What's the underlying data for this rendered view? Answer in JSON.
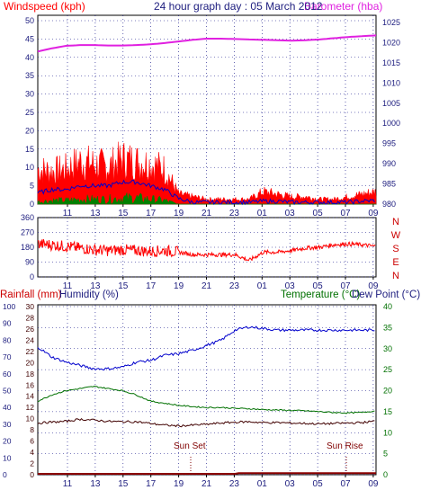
{
  "colors": {
    "red": "#ff0000",
    "blue": "#0000cc",
    "green": "#008000",
    "magenta": "#e020e0",
    "navy": "#202080",
    "darkgreen": "#007000",
    "maroon": "#400000",
    "grid": "#000080"
  },
  "chart_data": [
    {
      "type": "line",
      "title": "24 hour graph day : 05 March 2012",
      "ylabel_left": "Windspeed (kph)",
      "ylabel_right": "Barometer (hba)",
      "x_ticks": [
        "11",
        "13",
        "15",
        "17",
        "19",
        "21",
        "23",
        "01",
        "03",
        "05",
        "07",
        "09"
      ],
      "y_left_ticks": [
        "0",
        "5",
        "10",
        "15",
        "20",
        "25",
        "30",
        "35",
        "40",
        "45",
        "50"
      ],
      "y_right_ticks": [
        "980",
        "985",
        "990",
        "995",
        "1000",
        "1005",
        "1010",
        "1015",
        "1020",
        "1025"
      ],
      "ylim_left": [
        0,
        50
      ],
      "ylim_right": [
        980,
        1025
      ],
      "x_range_hours": [
        0,
        24
      ],
      "series": [
        {
          "name": "Barometer (hba)",
          "axis": "right",
          "x": [
            0,
            1,
            2,
            3,
            4,
            5,
            6,
            7,
            8,
            9,
            10,
            11,
            12,
            13,
            14,
            15,
            16,
            17,
            18,
            19,
            20,
            21,
            22,
            23,
            24
          ],
          "values": [
            1017.8,
            1018.6,
            1019.2,
            1019.4,
            1019.4,
            1019.3,
            1019.3,
            1019.4,
            1019.6,
            1019.9,
            1020.3,
            1020.7,
            1021.0,
            1021.0,
            1020.9,
            1020.8,
            1020.7,
            1020.6,
            1020.5,
            1020.6,
            1020.8,
            1021.1,
            1021.4,
            1021.6,
            1021.8
          ]
        },
        {
          "name": "Windspeed (kph) gust envelope",
          "axis": "left",
          "x": [
            0,
            1,
            2,
            3,
            4,
            5,
            6,
            7,
            8,
            9,
            10,
            11,
            12,
            13,
            14,
            15,
            16,
            17,
            18,
            19,
            20,
            21,
            22,
            23,
            24
          ],
          "values": [
            14,
            13,
            14,
            17,
            16,
            15,
            18,
            17,
            16,
            14,
            4,
            3,
            2,
            2,
            2,
            2,
            5,
            4,
            3,
            3,
            2,
            2,
            3,
            4,
            5
          ]
        },
        {
          "name": "Average wind",
          "axis": "left",
          "x": [
            0,
            1,
            2,
            3,
            4,
            5,
            6,
            7,
            8,
            9,
            10,
            11,
            12,
            13,
            14,
            15,
            16,
            17,
            18,
            19,
            20,
            21,
            22,
            23,
            24
          ],
          "values": [
            3,
            4,
            4,
            5,
            5,
            5,
            6,
            6,
            5,
            4,
            1.5,
            0.5,
            0.5,
            0.5,
            0.5,
            0.5,
            0.8,
            0.8,
            0.5,
            0.5,
            0.5,
            0.5,
            0.5,
            0.8,
            1
          ]
        },
        {
          "name": "Wind lull",
          "axis": "left",
          "x": [
            0,
            1,
            2,
            3,
            4,
            5,
            6,
            7,
            8,
            9,
            10,
            11,
            12,
            13,
            14,
            15,
            16,
            17,
            18,
            19,
            20,
            21,
            22,
            23,
            24
          ],
          "values": [
            1,
            1.5,
            1.5,
            2,
            2,
            2,
            2.5,
            2.5,
            2,
            1.5,
            0,
            0,
            0,
            0,
            0,
            0,
            0,
            0,
            0,
            0,
            0,
            0,
            0,
            0,
            0
          ]
        }
      ]
    },
    {
      "type": "line",
      "ylabel_right_letters": [
        "N",
        "W",
        "S",
        "E",
        "N"
      ],
      "y_ticks": [
        "0",
        "90",
        "180",
        "270",
        "360"
      ],
      "ylim": [
        0,
        360
      ],
      "x_ticks": [
        "11",
        "13",
        "15",
        "17",
        "19",
        "21",
        "23",
        "01",
        "03",
        "05",
        "07",
        "09"
      ],
      "series": [
        {
          "name": "Wind direction",
          "x": [
            0,
            1,
            2,
            3,
            4,
            5,
            6,
            7,
            8,
            9,
            10,
            11,
            12,
            13,
            14,
            15,
            16,
            17,
            18,
            19,
            20,
            21,
            22,
            23,
            24
          ],
          "values": [
            200,
            195,
            185,
            175,
            165,
            160,
            165,
            160,
            155,
            160,
            150,
            135,
            135,
            135,
            135,
            100,
            150,
            150,
            160,
            175,
            180,
            195,
            200,
            195,
            185
          ]
        }
      ]
    },
    {
      "type": "line",
      "ylabel_left": "Rainfall (mm)",
      "ylabel_left2": "Humidity (%)",
      "ylabel_right": "Temperature (°C)",
      "ylabel_right2": "Dew Point (°C)",
      "y_rain_ticks": [
        "0",
        "2",
        "4",
        "6",
        "8",
        "10",
        "12",
        "14",
        "16",
        "18",
        "20",
        "22",
        "24",
        "26",
        "28",
        "30"
      ],
      "y_humidity_ticks": [
        "0",
        "10",
        "20",
        "30",
        "40",
        "50",
        "60",
        "70",
        "80",
        "90",
        "100"
      ],
      "y_temp_ticks": [
        "0",
        "5",
        "10",
        "15",
        "20",
        "25",
        "30",
        "35",
        "40"
      ],
      "ylim_humidity": [
        0,
        100
      ],
      "ylim_temp": [
        0,
        40
      ],
      "x_ticks": [
        "11",
        "13",
        "15",
        "17",
        "19",
        "21",
        "23",
        "01",
        "03",
        "05",
        "07",
        "09"
      ],
      "annotations": [
        "Sun Set",
        "Sun Rise"
      ],
      "series": [
        {
          "name": "Humidity (%)",
          "x": [
            0,
            1,
            2,
            3,
            4,
            5,
            6,
            7,
            8,
            9,
            10,
            11,
            12,
            13,
            14,
            15,
            16,
            17,
            18,
            19,
            20,
            21,
            22,
            23,
            24
          ],
          "values": [
            76,
            70,
            67,
            65,
            63,
            63,
            64,
            67,
            68,
            71,
            72,
            74,
            77,
            80,
            86,
            88,
            87,
            86,
            86,
            86,
            86,
            86,
            86,
            86,
            86
          ]
        },
        {
          "name": "Temperature (°C)",
          "x": [
            0,
            1,
            2,
            3,
            4,
            5,
            6,
            7,
            8,
            9,
            10,
            11,
            12,
            13,
            14,
            15,
            16,
            17,
            18,
            19,
            20,
            21,
            22,
            23,
            24
          ],
          "values": [
            17.5,
            19,
            20,
            20.5,
            21,
            20.5,
            20,
            19,
            17.5,
            17,
            16.5,
            16.2,
            16,
            16,
            15.8,
            15.7,
            15.5,
            15.4,
            15.3,
            15.2,
            15,
            14.8,
            14.7,
            14.8,
            15.2
          ]
        },
        {
          "name": "Dew Point (°C)",
          "x": [
            0,
            1,
            2,
            3,
            4,
            5,
            6,
            7,
            8,
            9,
            10,
            11,
            12,
            13,
            14,
            15,
            16,
            17,
            18,
            19,
            20,
            21,
            22,
            23,
            24
          ],
          "values": [
            12.3,
            12.5,
            12.7,
            13.2,
            13,
            12.7,
            12.6,
            12.6,
            12.2,
            11.8,
            11.6,
            11.8,
            12,
            12.3,
            12.5,
            12.6,
            12.4,
            12.4,
            12.3,
            12.2,
            12.1,
            12.2,
            12.3,
            12.4,
            12.8
          ]
        },
        {
          "name": "Rainfall (mm)",
          "x": [
            0,
            14,
            14.01,
            24
          ],
          "values": [
            0,
            0,
            0.2,
            0.2
          ]
        }
      ]
    }
  ]
}
